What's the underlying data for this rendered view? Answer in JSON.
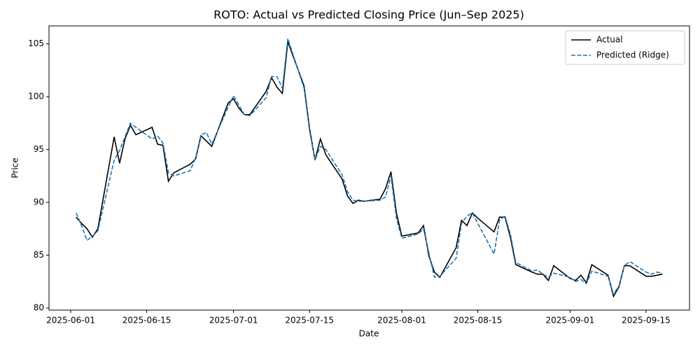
{
  "chart_data": {
    "type": "line",
    "title": "ROTO: Actual vs Predicted Closing Price (Jun–Sep 2025)",
    "xlabel": "Date",
    "ylabel": "Price",
    "x": [
      "2025-06-02",
      "2025-06-03",
      "2025-06-04",
      "2025-06-05",
      "2025-06-06",
      "2025-06-09",
      "2025-06-10",
      "2025-06-11",
      "2025-06-12",
      "2025-06-13",
      "2025-06-16",
      "2025-06-17",
      "2025-06-18",
      "2025-06-19",
      "2025-06-20",
      "2025-06-23",
      "2025-06-24",
      "2025-06-25",
      "2025-06-26",
      "2025-06-27",
      "2025-06-30",
      "2025-07-01",
      "2025-07-02",
      "2025-07-03",
      "2025-07-04",
      "2025-07-07",
      "2025-07-08",
      "2025-07-09",
      "2025-07-10",
      "2025-07-11",
      "2025-07-14",
      "2025-07-15",
      "2025-07-16",
      "2025-07-17",
      "2025-07-18",
      "2025-07-21",
      "2025-07-22",
      "2025-07-23",
      "2025-07-24",
      "2025-07-25",
      "2025-07-28",
      "2025-07-29",
      "2025-07-30",
      "2025-07-31",
      "2025-08-01",
      "2025-08-04",
      "2025-08-05",
      "2025-08-06",
      "2025-08-07",
      "2025-08-08",
      "2025-08-11",
      "2025-08-12",
      "2025-08-13",
      "2025-08-14",
      "2025-08-15",
      "2025-08-18",
      "2025-08-19",
      "2025-08-20",
      "2025-08-21",
      "2025-08-22",
      "2025-08-25",
      "2025-08-26",
      "2025-08-27",
      "2025-08-28",
      "2025-08-29",
      "2025-09-01",
      "2025-09-02",
      "2025-09-03",
      "2025-09-04",
      "2025-09-05",
      "2025-09-08",
      "2025-09-09",
      "2025-09-10",
      "2025-09-11",
      "2025-09-12",
      "2025-09-15",
      "2025-09-16",
      "2025-09-17",
      "2025-09-18"
    ],
    "series": [
      {
        "name": "Actual",
        "color": "#000000",
        "dash": false,
        "values": [
          88.6,
          88.0,
          87.5,
          86.7,
          87.5,
          96.2,
          93.7,
          96.0,
          97.3,
          96.4,
          97.1,
          95.5,
          95.4,
          92.0,
          92.8,
          93.6,
          94.1,
          96.3,
          95.8,
          95.3,
          99.4,
          99.8,
          98.9,
          98.3,
          98.3,
          100.5,
          101.8,
          100.9,
          100.3,
          105.2,
          101.0,
          97.0,
          94.0,
          96.0,
          94.5,
          92.2,
          90.6,
          89.9,
          90.2,
          90.1,
          90.3,
          91.3,
          92.9,
          89.0,
          86.8,
          87.1,
          87.8,
          84.9,
          83.4,
          82.9,
          85.7,
          88.3,
          87.8,
          89.0,
          88.5,
          87.2,
          88.6,
          88.6,
          86.7,
          84.1,
          83.4,
          83.2,
          83.2,
          82.6,
          84.0,
          82.8,
          82.6,
          83.1,
          82.4,
          84.1,
          83.1,
          81.1,
          82.0,
          84.0,
          84.0,
          83.0,
          83.0,
          83.1,
          83.2
        ]
      },
      {
        "name": "Predicted (Ridge)",
        "color": "#1f77b4",
        "dash": true,
        "values": [
          89.0,
          87.8,
          86.4,
          86.8,
          87.3,
          94.0,
          94.9,
          96.2,
          97.5,
          97.1,
          96.0,
          96.3,
          95.6,
          92.8,
          92.5,
          93.0,
          94.2,
          96.4,
          96.6,
          95.5,
          99.0,
          100.1,
          99.2,
          98.3,
          98.2,
          99.9,
          101.9,
          101.9,
          100.8,
          105.5,
          100.8,
          96.8,
          94.0,
          95.3,
          95.0,
          92.6,
          91.0,
          90.2,
          90.1,
          90.1,
          90.2,
          90.5,
          92.5,
          88.5,
          86.6,
          87.0,
          87.5,
          85.2,
          82.9,
          83.0,
          84.7,
          88.0,
          88.7,
          89.0,
          88.0,
          85.1,
          88.3,
          88.7,
          87.0,
          84.3,
          83.5,
          83.6,
          83.2,
          82.9,
          83.3,
          82.9,
          82.5,
          82.7,
          82.3,
          83.5,
          83.0,
          81.3,
          82.1,
          84.0,
          84.4,
          83.4,
          83.2,
          83.4,
          83.3
        ]
      }
    ],
    "xlim": [
      "2025-05-28",
      "2025-09-23"
    ],
    "xticks": [
      "2025-06-01",
      "2025-06-15",
      "2025-07-01",
      "2025-07-15",
      "2025-08-01",
      "2025-08-15",
      "2025-09-01",
      "2025-09-15"
    ],
    "ylim": [
      79.8,
      106.7
    ],
    "yticks": [
      80,
      85,
      90,
      95,
      100,
      105
    ],
    "grid": false,
    "legend": "upper right"
  }
}
